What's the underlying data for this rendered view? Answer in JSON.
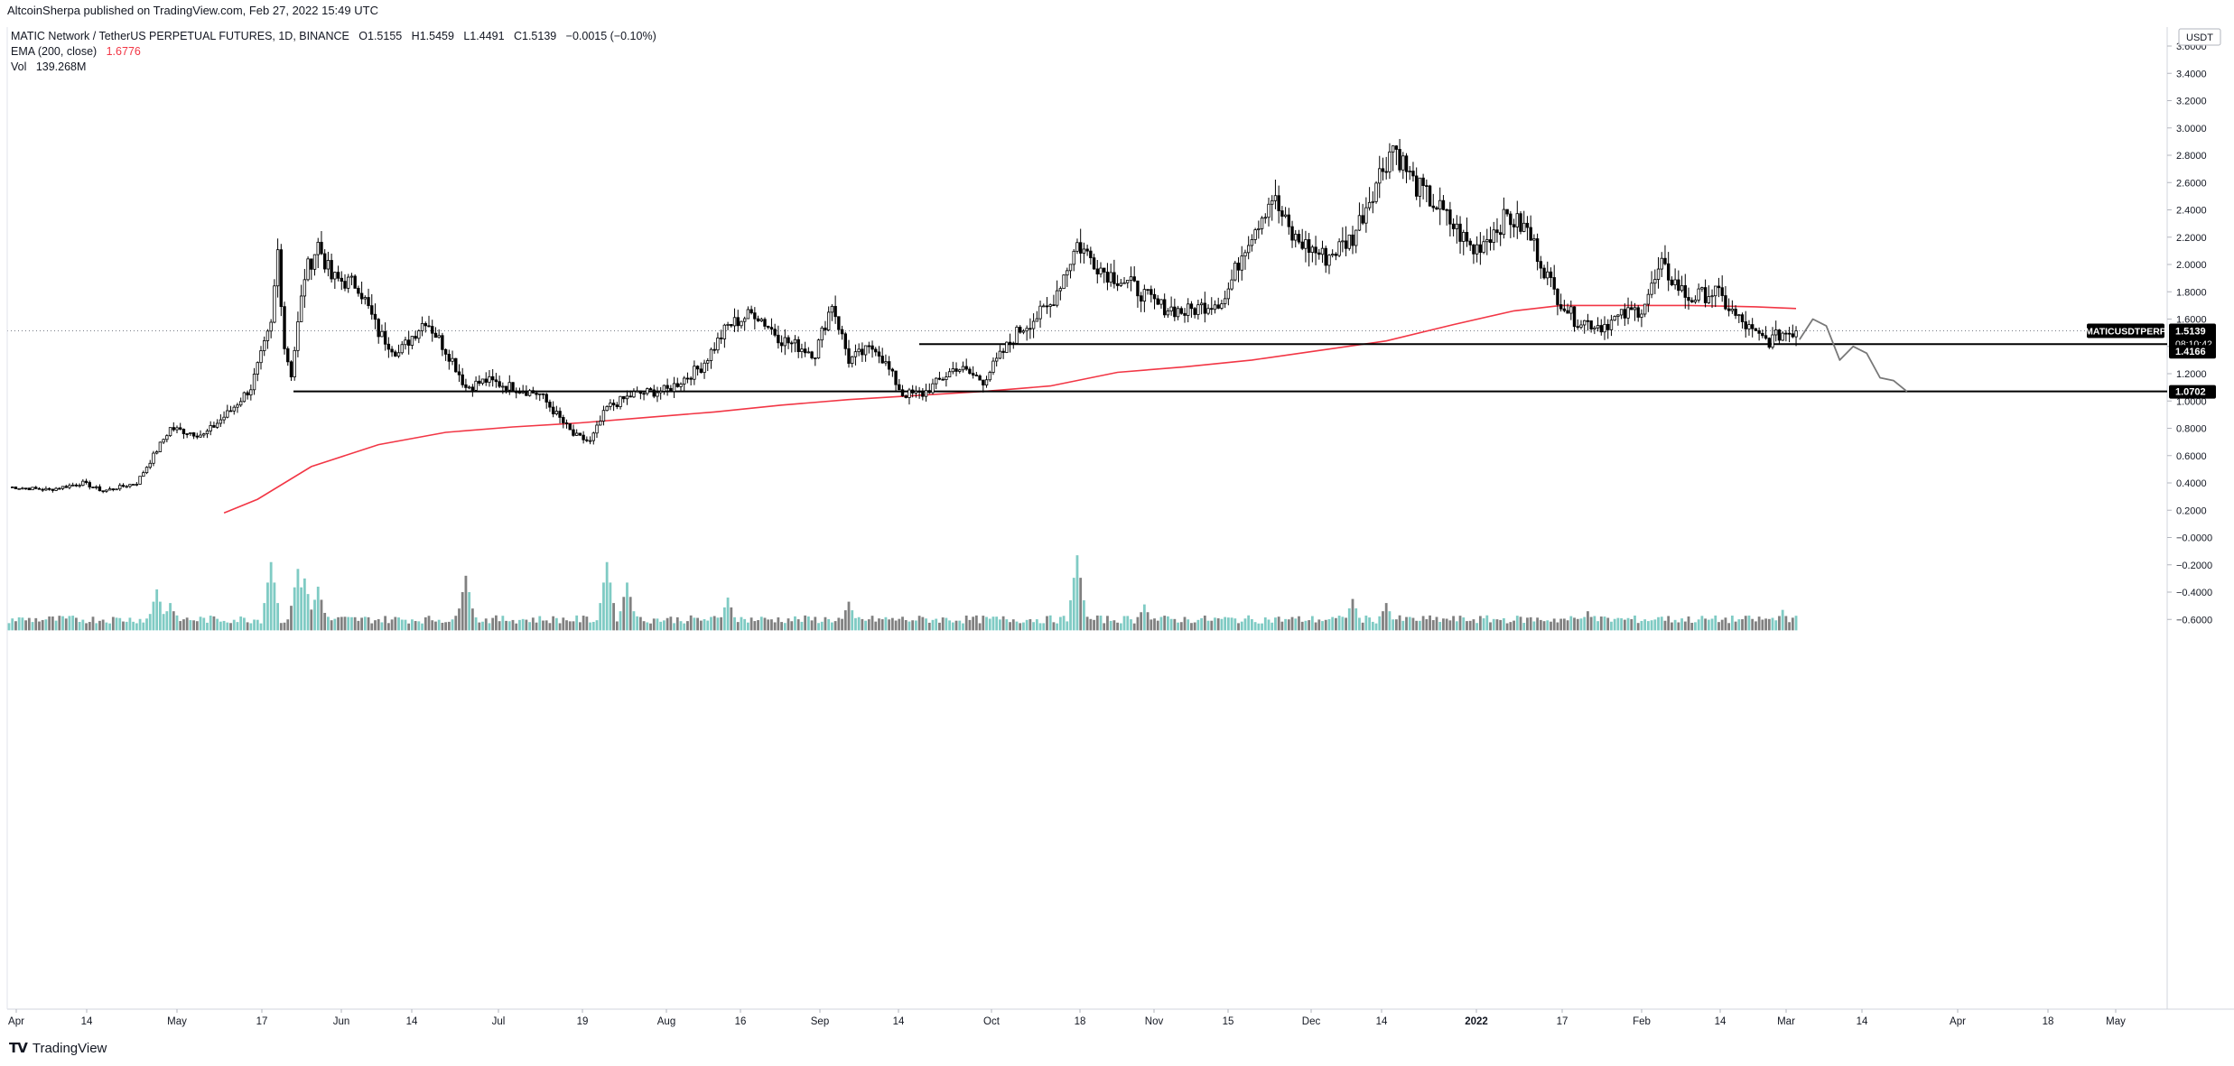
{
  "caption": "AltcoinSherpa published on TradingView.com, Feb 27, 2022 15:49 UTC",
  "legend": {
    "symbol_line": "MATIC Network / TetherUS PERPETUAL FUTURES, 1D, BINANCE",
    "open": "O1.5155",
    "high": "H1.5459",
    "low": "L1.4491",
    "close": "C1.5139",
    "change": "−0.0015 (−0.10%)",
    "ema_label": "EMA (200, close)",
    "ema_value": "1.6776",
    "vol_label": "Vol",
    "vol_value": "139.268M"
  },
  "currency_label": "USDT",
  "price_tag": {
    "symbol": "MATICUSDTPERP",
    "price": "1.5139",
    "countdown": "08:10:42"
  },
  "level_labels": [
    "1.4166",
    "1.0702"
  ],
  "brand": "TradingView",
  "brand_icon": "tradingview-logo-icon",
  "colors": {
    "up": "#ffffff",
    "down": "#000000",
    "ema": "#f23645",
    "vol_up": "#7fcbc4",
    "vol_down": "#808080",
    "level": "#000000",
    "sketch": "#787878"
  },
  "chart_data": {
    "type": "candlestick",
    "symbol": "MATICUSDTPERP",
    "timeframe": "1D",
    "ylim": [
      -0.68,
      3.72
    ],
    "y_ticks": [
      "3.6000",
      "3.4000",
      "3.2000",
      "3.0000",
      "2.8000",
      "2.6000",
      "2.4000",
      "2.2000",
      "2.0000",
      "1.8000",
      "1.6000",
      "1.4000",
      "1.2000",
      "1.0000",
      "0.8000",
      "0.6000",
      "0.4000",
      "0.2000",
      "−0.0000",
      "−0.2000",
      "−0.4000",
      "−0.6000"
    ],
    "x_ticks": [
      "Apr",
      "14",
      "May",
      "17",
      "Jun",
      "14",
      "Jul",
      "19",
      "Aug",
      "16",
      "Sep",
      "14",
      "Oct",
      "18",
      "Nov",
      "15",
      "Dec",
      "14",
      "2022",
      "17",
      "Feb",
      "14",
      "Mar",
      "14",
      "Apr",
      "18",
      "May"
    ],
    "horizontal_levels": [
      1.4166,
      1.0702
    ],
    "last_price": 1.5139,
    "ema_200_last": 1.6776,
    "volume_last": "139.268M",
    "price_path": [
      [
        0,
        0.37
      ],
      [
        12,
        0.35
      ],
      [
        22,
        0.4
      ],
      [
        28,
        0.34
      ],
      [
        38,
        0.4
      ],
      [
        48,
        0.8
      ],
      [
        58,
        0.75
      ],
      [
        66,
        0.93
      ],
      [
        72,
        1.1
      ],
      [
        78,
        1.55
      ],
      [
        80,
        2.1
      ],
      [
        82,
        1.4
      ],
      [
        84,
        1.2
      ],
      [
        88,
        1.92
      ],
      [
        92,
        2.15
      ],
      [
        96,
        1.9
      ],
      [
        104,
        1.85
      ],
      [
        110,
        1.5
      ],
      [
        116,
        1.35
      ],
      [
        124,
        1.6
      ],
      [
        132,
        1.3
      ],
      [
        136,
        1.1
      ],
      [
        142,
        1.15
      ],
      [
        150,
        1.1
      ],
      [
        158,
        1.05
      ],
      [
        168,
        0.75
      ],
      [
        173,
        0.7
      ],
      [
        178,
        0.95
      ],
      [
        186,
        1.05
      ],
      [
        196,
        1.08
      ],
      [
        206,
        1.25
      ],
      [
        214,
        1.55
      ],
      [
        222,
        1.65
      ],
      [
        230,
        1.45
      ],
      [
        240,
        1.35
      ],
      [
        245,
        1.72
      ],
      [
        250,
        1.3
      ],
      [
        258,
        1.4
      ],
      [
        266,
        1.05
      ],
      [
        272,
        1.05
      ],
      [
        282,
        1.25
      ],
      [
        290,
        1.15
      ],
      [
        300,
        1.5
      ],
      [
        310,
        1.7
      ],
      [
        318,
        2.15
      ],
      [
        326,
        1.95
      ],
      [
        334,
        1.85
      ],
      [
        342,
        1.7
      ],
      [
        350,
        1.65
      ],
      [
        362,
        1.75
      ],
      [
        368,
        2.15
      ],
      [
        376,
        2.5
      ],
      [
        382,
        2.2
      ],
      [
        392,
        2.05
      ],
      [
        400,
        2.2
      ],
      [
        406,
        2.55
      ],
      [
        412,
        2.88
      ],
      [
        418,
        2.6
      ],
      [
        426,
        2.4
      ],
      [
        436,
        2.1
      ],
      [
        446,
        2.35
      ],
      [
        452,
        2.25
      ],
      [
        460,
        1.8
      ],
      [
        466,
        1.6
      ],
      [
        474,
        1.55
      ],
      [
        480,
        1.62
      ],
      [
        486,
        1.68
      ],
      [
        492,
        1.98
      ],
      [
        500,
        1.75
      ],
      [
        508,
        1.8
      ],
      [
        514,
        1.62
      ],
      [
        520,
        1.48
      ],
      [
        524,
        1.44
      ],
      [
        528,
        1.5
      ],
      [
        532,
        1.51
      ]
    ],
    "projection_path": [
      [
        533,
        1.45
      ],
      [
        537,
        1.6
      ],
      [
        541,
        1.55
      ],
      [
        545,
        1.3
      ],
      [
        549,
        1.4
      ],
      [
        553,
        1.35
      ],
      [
        557,
        1.17
      ],
      [
        561,
        1.15
      ],
      [
        565,
        1.07
      ]
    ],
    "ema_path": [
      [
        64,
        0.18
      ],
      [
        74,
        0.28
      ],
      [
        90,
        0.52
      ],
      [
        110,
        0.68
      ],
      [
        130,
        0.77
      ],
      [
        150,
        0.81
      ],
      [
        170,
        0.84
      ],
      [
        190,
        0.88
      ],
      [
        210,
        0.92
      ],
      [
        230,
        0.97
      ],
      [
        250,
        1.01
      ],
      [
        270,
        1.04
      ],
      [
        290,
        1.07
      ],
      [
        310,
        1.11
      ],
      [
        330,
        1.21
      ],
      [
        350,
        1.25
      ],
      [
        370,
        1.3
      ],
      [
        390,
        1.37
      ],
      [
        410,
        1.44
      ],
      [
        430,
        1.56
      ],
      [
        448,
        1.66
      ],
      [
        462,
        1.7
      ],
      [
        480,
        1.7
      ],
      [
        500,
        1.7
      ],
      [
        520,
        1.69
      ],
      [
        532,
        1.6776
      ]
    ],
    "volume_peaks": [
      [
        44,
        0.3
      ],
      [
        48,
        0.2
      ],
      [
        78,
        0.5
      ],
      [
        86,
        0.45
      ],
      [
        88,
        0.38
      ],
      [
        92,
        0.32
      ],
      [
        136,
        0.4
      ],
      [
        178,
        0.5
      ],
      [
        184,
        0.35
      ],
      [
        214,
        0.24
      ],
      [
        250,
        0.21
      ],
      [
        318,
        0.55
      ],
      [
        338,
        0.19
      ],
      [
        400,
        0.23
      ],
      [
        410,
        0.2
      ],
      [
        470,
        0.14
      ],
      [
        492,
        0.1
      ],
      [
        528,
        0.15
      ]
    ]
  }
}
